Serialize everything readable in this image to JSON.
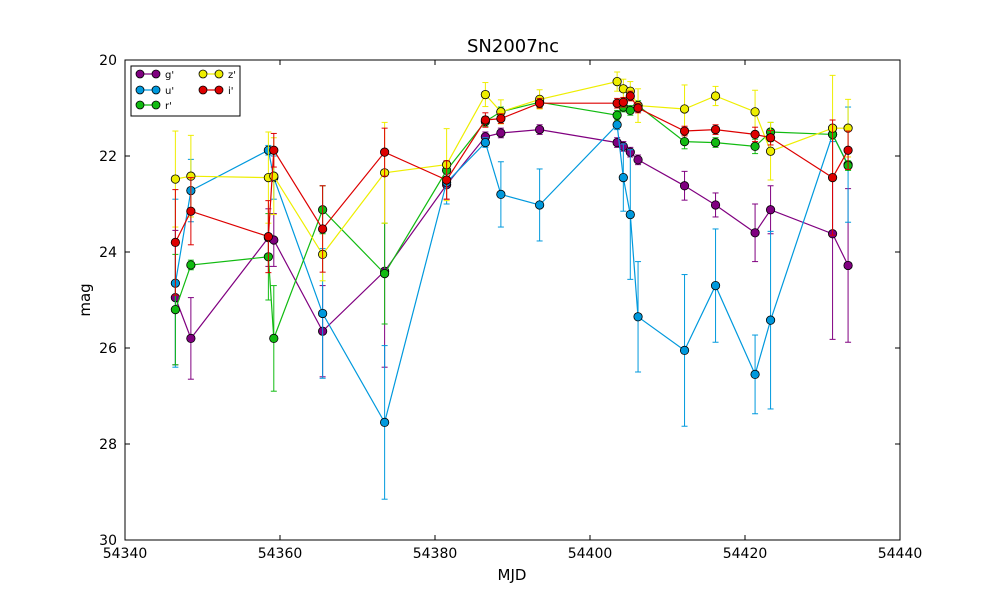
{
  "chart_data": {
    "type": "scatter",
    "title": "SN2007nc",
    "xlabel": "MJD",
    "ylabel": "mag",
    "xlim": [
      54340,
      54440
    ],
    "ylim": [
      30,
      20
    ],
    "y_inverted": true,
    "x_ticks": [
      54340,
      54360,
      54380,
      54400,
      54420,
      54440
    ],
    "y_ticks": [
      20,
      22,
      24,
      26,
      28,
      30
    ],
    "x_tick_labels": [
      "54340",
      "54360",
      "54380",
      "54400",
      "54420",
      "54440"
    ],
    "y_tick_labels": [
      "20",
      "22",
      "24",
      "26",
      "28",
      "30"
    ],
    "grid": false,
    "legend_position": "top-left",
    "series": [
      {
        "name": "g'",
        "color": "#800080",
        "points": [
          {
            "x": 54346.5,
            "y": 24.95,
            "err": 1.4
          },
          {
            "x": 54348.5,
            "y": 25.8,
            "err": 0.85
          },
          {
            "x": 54358.5,
            "y": 23.7,
            "err": 0.6
          },
          {
            "x": 54359.2,
            "y": 23.75,
            "err": 0.55
          },
          {
            "x": 54365.5,
            "y": 25.65,
            "err": 0.95
          },
          {
            "x": 54373.5,
            "y": 24.4,
            "err": 2.0
          },
          {
            "x": 54381.5,
            "y": 22.6,
            "err": 0.3
          },
          {
            "x": 54386.5,
            "y": 21.6,
            "err": 0.1
          },
          {
            "x": 54388.5,
            "y": 21.52,
            "err": 0.1
          },
          {
            "x": 54393.5,
            "y": 21.45,
            "err": 0.1
          },
          {
            "x": 54403.5,
            "y": 21.72,
            "err": 0.1
          },
          {
            "x": 54404.3,
            "y": 21.8,
            "err": 0.1
          },
          {
            "x": 54405.2,
            "y": 21.92,
            "err": 0.1
          },
          {
            "x": 54406.2,
            "y": 22.08,
            "err": 0.1
          },
          {
            "x": 54412.2,
            "y": 22.62,
            "err": 0.3
          },
          {
            "x": 54416.2,
            "y": 23.02,
            "err": 0.25
          },
          {
            "x": 54421.3,
            "y": 23.6,
            "err": 0.6
          },
          {
            "x": 54423.3,
            "y": 23.12,
            "err": 0.5
          },
          {
            "x": 54431.3,
            "y": 23.62,
            "err": 2.2
          },
          {
            "x": 54433.3,
            "y": 24.28,
            "err": 1.6
          }
        ]
      },
      {
        "name": "u'",
        "color": "#0099dd",
        "points": [
          {
            "x": 54346.5,
            "y": 24.65,
            "err": 1.75
          },
          {
            "x": 54348.5,
            "y": 22.72,
            "err": 0.65
          },
          {
            "x": 54358.5,
            "y": 21.88,
            "err": 0.1
          },
          {
            "x": 54359.2,
            "y": 22.45,
            "err": 0.45
          },
          {
            "x": 54365.5,
            "y": 25.28,
            "err": 1.35
          },
          {
            "x": 54373.5,
            "y": 27.55,
            "err": 1.6
          },
          {
            "x": 54381.5,
            "y": 22.55,
            "err": 0.45
          },
          {
            "x": 54386.5,
            "y": 21.72,
            "err": 0.1
          },
          {
            "x": 54388.5,
            "y": 22.8,
            "err": 0.68
          },
          {
            "x": 54393.5,
            "y": 23.02,
            "err": 0.75
          },
          {
            "x": 54403.5,
            "y": 21.35,
            "err": 0.1
          },
          {
            "x": 54404.3,
            "y": 22.45,
            "err": 0.7
          },
          {
            "x": 54405.2,
            "y": 23.22,
            "err": 1.35
          },
          {
            "x": 54406.2,
            "y": 25.35,
            "err": 1.15
          },
          {
            "x": 54412.2,
            "y": 26.05,
            "err": 1.58
          },
          {
            "x": 54416.2,
            "y": 24.7,
            "err": 1.18
          },
          {
            "x": 54421.3,
            "y": 26.55,
            "err": 0.82
          },
          {
            "x": 54423.3,
            "y": 25.42,
            "err": 1.85
          },
          {
            "x": 54431.3,
            "y": 21.55,
            "err": 0.15
          },
          {
            "x": 54433.3,
            "y": 22.18,
            "err": 1.2
          }
        ]
      },
      {
        "name": "r'",
        "color": "#11bb11",
        "points": [
          {
            "x": 54346.5,
            "y": 25.2,
            "err": 1.15
          },
          {
            "x": 54348.5,
            "y": 24.27,
            "err": 0.1
          },
          {
            "x": 54358.5,
            "y": 24.1,
            "err": 0.9
          },
          {
            "x": 54359.2,
            "y": 25.8,
            "err": 1.1
          },
          {
            "x": 54365.5,
            "y": 23.12,
            "err": 0.5
          },
          {
            "x": 54373.5,
            "y": 24.45,
            "err": 1.05
          },
          {
            "x": 54381.5,
            "y": 22.3,
            "err": 0.2
          },
          {
            "x": 54386.5,
            "y": 21.28,
            "err": 0.1
          },
          {
            "x": 54388.5,
            "y": 21.08,
            "err": 0.1
          },
          {
            "x": 54393.5,
            "y": 20.88,
            "err": 0.1
          },
          {
            "x": 54403.5,
            "y": 21.15,
            "err": 0.1
          },
          {
            "x": 54404.3,
            "y": 20.98,
            "err": 0.1
          },
          {
            "x": 54405.2,
            "y": 21.05,
            "err": 0.1
          },
          {
            "x": 54406.2,
            "y": 20.95,
            "err": 0.1
          },
          {
            "x": 54412.2,
            "y": 21.7,
            "err": 0.15
          },
          {
            "x": 54416.2,
            "y": 21.72,
            "err": 0.1
          },
          {
            "x": 54421.3,
            "y": 21.8,
            "err": 0.15
          },
          {
            "x": 54423.3,
            "y": 21.5,
            "err": 0.2
          },
          {
            "x": 54431.3,
            "y": 21.55,
            "err": 0.1
          },
          {
            "x": 54433.3,
            "y": 22.2,
            "err": 0.1
          }
        ]
      },
      {
        "name": "z'",
        "color": "#eeee00",
        "points": [
          {
            "x": 54346.5,
            "y": 22.48,
            "err": 1.0
          },
          {
            "x": 54348.5,
            "y": 22.42,
            "err": 0.85
          },
          {
            "x": 54358.5,
            "y": 22.45,
            "err": 0.95
          },
          {
            "x": 54359.2,
            "y": 22.42,
            "err": 0.8
          },
          {
            "x": 54365.5,
            "y": 24.05,
            "err": 0.55
          },
          {
            "x": 54373.5,
            "y": 22.35,
            "err": 1.05
          },
          {
            "x": 54381.5,
            "y": 22.18,
            "err": 0.75
          },
          {
            "x": 54386.5,
            "y": 20.72,
            "err": 0.25
          },
          {
            "x": 54388.5,
            "y": 21.08,
            "err": 0.25
          },
          {
            "x": 54393.5,
            "y": 20.82,
            "err": 0.2
          },
          {
            "x": 54403.5,
            "y": 20.45,
            "err": 0.2
          },
          {
            "x": 54404.3,
            "y": 20.6,
            "err": 0.2
          },
          {
            "x": 54405.2,
            "y": 20.65,
            "err": 0.2
          },
          {
            "x": 54406.2,
            "y": 20.95,
            "err": 0.35
          },
          {
            "x": 54412.2,
            "y": 21.02,
            "err": 0.5
          },
          {
            "x": 54416.2,
            "y": 20.75,
            "err": 0.2
          },
          {
            "x": 54421.3,
            "y": 21.08,
            "err": 0.45
          },
          {
            "x": 54423.3,
            "y": 21.9,
            "err": 0.6
          },
          {
            "x": 54431.3,
            "y": 21.42,
            "err": 1.1
          },
          {
            "x": 54433.3,
            "y": 21.42,
            "err": 0.6
          }
        ]
      },
      {
        "name": "i'",
        "color": "#dd0000",
        "points": [
          {
            "x": 54346.5,
            "y": 23.8,
            "err": 1.1
          },
          {
            "x": 54348.5,
            "y": 23.15,
            "err": 0.7
          },
          {
            "x": 54358.5,
            "y": 23.68,
            "err": 0.75
          },
          {
            "x": 54359.2,
            "y": 21.88,
            "err": 0.35
          },
          {
            "x": 54365.5,
            "y": 23.52,
            "err": 0.9
          },
          {
            "x": 54373.5,
            "y": 21.92,
            "err": 0.5
          },
          {
            "x": 54381.5,
            "y": 22.5,
            "err": 0.4
          },
          {
            "x": 54386.5,
            "y": 21.25,
            "err": 0.15
          },
          {
            "x": 54388.5,
            "y": 21.22,
            "err": 0.1
          },
          {
            "x": 54393.5,
            "y": 20.9,
            "err": 0.1
          },
          {
            "x": 54403.5,
            "y": 20.9,
            "err": 0.1
          },
          {
            "x": 54404.3,
            "y": 20.88,
            "err": 0.1
          },
          {
            "x": 54405.2,
            "y": 20.75,
            "err": 0.1
          },
          {
            "x": 54406.2,
            "y": 21.0,
            "err": 0.1
          },
          {
            "x": 54412.2,
            "y": 21.48,
            "err": 0.1
          },
          {
            "x": 54416.2,
            "y": 21.45,
            "err": 0.1
          },
          {
            "x": 54421.3,
            "y": 21.55,
            "err": 0.15
          },
          {
            "x": 54423.3,
            "y": 21.62,
            "err": 0.15
          },
          {
            "x": 54431.3,
            "y": 22.45,
            "err": 1.2
          },
          {
            "x": 54433.3,
            "y": 21.88,
            "err": 0.4
          }
        ]
      }
    ],
    "legend_order": [
      "g'",
      "u'",
      "r'",
      "z'",
      "i'"
    ]
  }
}
